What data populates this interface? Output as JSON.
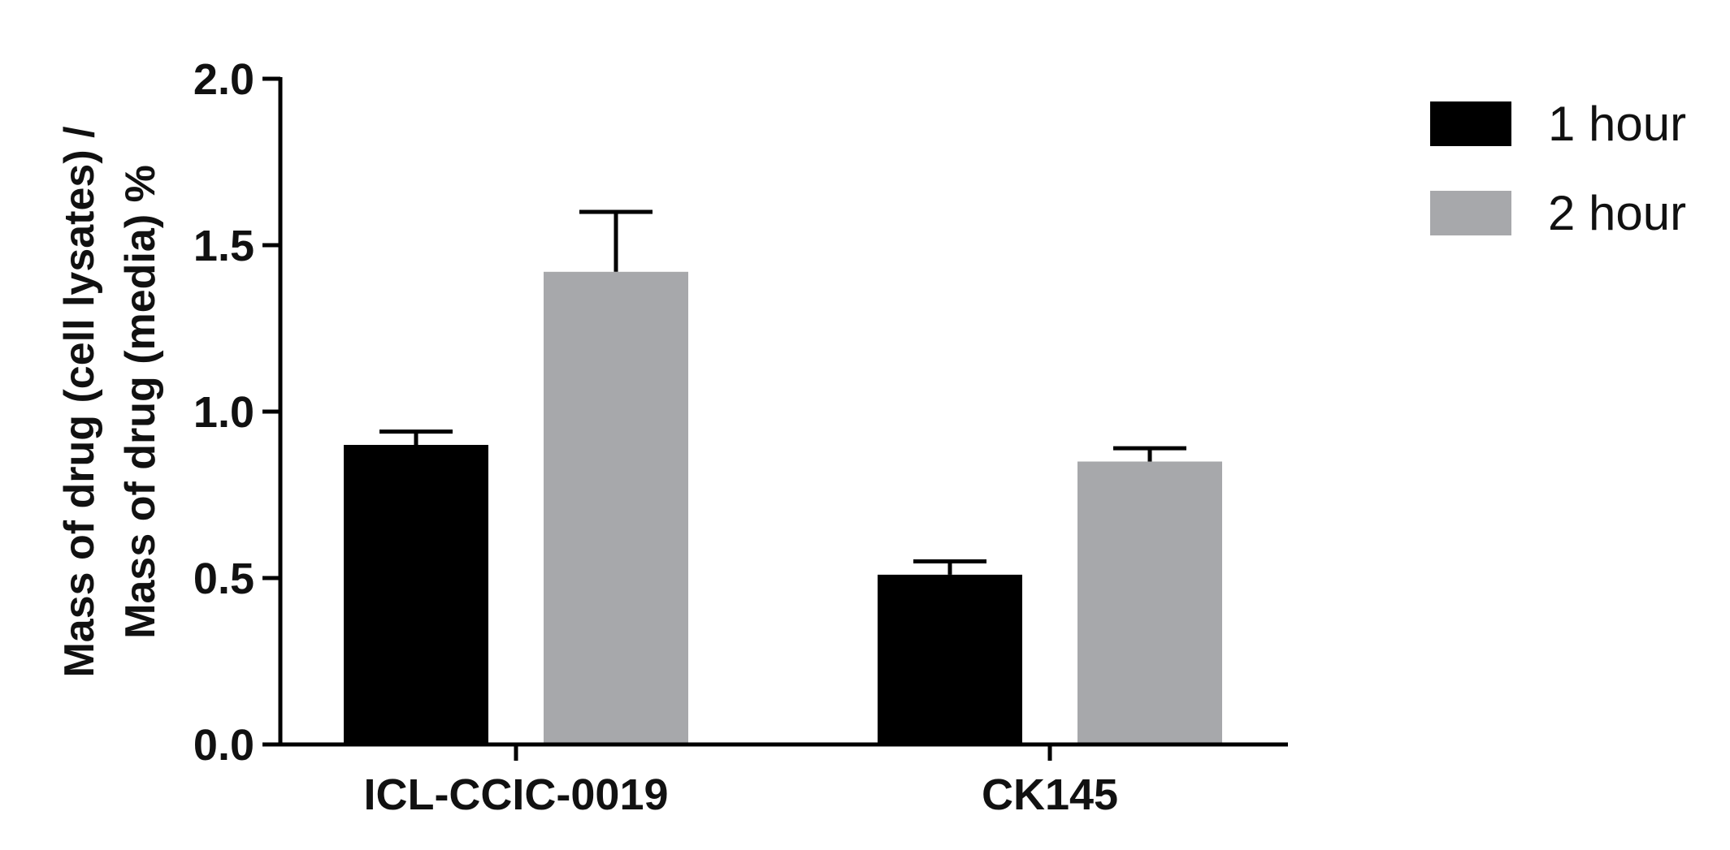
{
  "chart_data": {
    "type": "bar",
    "title": "",
    "xlabel": "",
    "ylabel_lines": [
      "Mass of drug (cell lysates) /",
      "Mass of drug (media) %"
    ],
    "categories": [
      "ICL-CCIC-0019",
      "CK145"
    ],
    "series": [
      {
        "name": "1 hour",
        "color": "#000000",
        "values": [
          0.9,
          0.51
        ],
        "errors": [
          0.04,
          0.04
        ]
      },
      {
        "name": "2 hour",
        "color": "#a7a8ab",
        "values": [
          1.42,
          0.85
        ],
        "errors": [
          0.18,
          0.04
        ]
      }
    ],
    "ylim": [
      0,
      2.0
    ],
    "yticks": [
      "0.0",
      "0.5",
      "1.0",
      "1.5",
      "2.0"
    ],
    "ytick_values": [
      0,
      0.5,
      1.0,
      1.5,
      2.0
    ],
    "grid": false,
    "legend_position": "top-right"
  }
}
